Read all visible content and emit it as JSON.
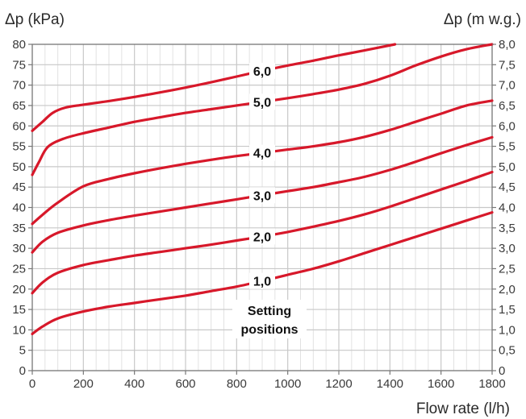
{
  "chart_data": {
    "type": "line",
    "ylabel_left": "Δp (kPa)",
    "ylabel_right": "Δp (m w.g.)",
    "xlabel": "Flow rate (l/h)",
    "xlim": [
      0,
      1800
    ],
    "ylim": [
      0,
      80
    ],
    "x_ticks": [
      "0",
      "200",
      "400",
      "600",
      "800",
      "1000",
      "1200",
      "1400",
      "1600",
      "1800"
    ],
    "y_ticks_left": [
      "0",
      "5",
      "10",
      "15",
      "20",
      "25",
      "30",
      "35",
      "40",
      "45",
      "50",
      "55",
      "60",
      "65",
      "70",
      "75",
      "80"
    ],
    "y_ticks_right": [
      "0",
      "0,5",
      "1,0",
      "1,5",
      "2,0",
      "2,5",
      "3,0",
      "3,5",
      "4,0",
      "4,5",
      "5,0",
      "5,5",
      "6,0",
      "6,5",
      "7,0",
      "7,5",
      "8,0"
    ],
    "annotation": [
      "Setting",
      "positions"
    ],
    "grid": true,
    "colors": {
      "curve": "#d7182a",
      "grid": "#c8c8c8",
      "axis": "#777777"
    },
    "series": [
      {
        "name": "1,0",
        "points": [
          [
            0,
            9
          ],
          [
            40,
            10.8
          ],
          [
            100,
            12.8
          ],
          [
            200,
            14.5
          ],
          [
            300,
            15.7
          ],
          [
            400,
            16.6
          ],
          [
            500,
            17.5
          ],
          [
            600,
            18.4
          ],
          [
            700,
            19.5
          ],
          [
            800,
            20.6
          ],
          [
            900,
            22.0
          ],
          [
            1000,
            23.5
          ],
          [
            1100,
            25.0
          ],
          [
            1200,
            26.8
          ],
          [
            1300,
            28.8
          ],
          [
            1400,
            30.8
          ],
          [
            1500,
            32.8
          ],
          [
            1600,
            34.8
          ],
          [
            1700,
            36.8
          ],
          [
            1800,
            38.8
          ]
        ]
      },
      {
        "name": "2,0",
        "points": [
          [
            0,
            19
          ],
          [
            40,
            21.6
          ],
          [
            100,
            24.0
          ],
          [
            200,
            25.9
          ],
          [
            300,
            27.1
          ],
          [
            400,
            28.2
          ],
          [
            500,
            29.1
          ],
          [
            600,
            30.0
          ],
          [
            700,
            30.9
          ],
          [
            800,
            31.9
          ],
          [
            900,
            32.9
          ],
          [
            1000,
            34.0
          ],
          [
            1100,
            35.3
          ],
          [
            1200,
            36.7
          ],
          [
            1300,
            38.3
          ],
          [
            1400,
            40.2
          ],
          [
            1500,
            42.3
          ],
          [
            1600,
            44.4
          ],
          [
            1700,
            46.5
          ],
          [
            1800,
            48.7
          ]
        ]
      },
      {
        "name": "3,0",
        "points": [
          [
            0,
            29
          ],
          [
            40,
            31.6
          ],
          [
            100,
            33.8
          ],
          [
            200,
            35.6
          ],
          [
            300,
            36.9
          ],
          [
            400,
            38.0
          ],
          [
            500,
            39.0
          ],
          [
            600,
            40.0
          ],
          [
            700,
            41.0
          ],
          [
            800,
            42.0
          ],
          [
            900,
            43.0
          ],
          [
            1000,
            44.0
          ],
          [
            1100,
            45.0
          ],
          [
            1200,
            46.2
          ],
          [
            1300,
            47.5
          ],
          [
            1400,
            49.2
          ],
          [
            1500,
            51.2
          ],
          [
            1600,
            53.3
          ],
          [
            1700,
            55.3
          ],
          [
            1800,
            57.2
          ]
        ]
      },
      {
        "name": "4,0",
        "points": [
          [
            0,
            36
          ],
          [
            40,
            38.2
          ],
          [
            100,
            41.2
          ],
          [
            200,
            45.2
          ],
          [
            300,
            47.0
          ],
          [
            400,
            48.4
          ],
          [
            500,
            49.6
          ],
          [
            600,
            50.7
          ],
          [
            700,
            51.7
          ],
          [
            800,
            52.6
          ],
          [
            900,
            53.4
          ],
          [
            1000,
            54.2
          ],
          [
            1100,
            55.0
          ],
          [
            1200,
            56.0
          ],
          [
            1300,
            57.3
          ],
          [
            1400,
            59.0
          ],
          [
            1500,
            61.0
          ],
          [
            1600,
            63.0
          ],
          [
            1700,
            65.0
          ],
          [
            1800,
            66.2
          ]
        ]
      },
      {
        "name": "5,0",
        "points": [
          [
            0,
            48
          ],
          [
            25,
            51.0
          ],
          [
            60,
            54.8
          ],
          [
            120,
            56.8
          ],
          [
            200,
            58.2
          ],
          [
            300,
            59.6
          ],
          [
            400,
            61.0
          ],
          [
            500,
            62.1
          ],
          [
            600,
            63.2
          ],
          [
            700,
            64.1
          ],
          [
            800,
            65.0
          ],
          [
            900,
            65.9
          ],
          [
            1000,
            66.8
          ],
          [
            1100,
            67.8
          ],
          [
            1200,
            68.9
          ],
          [
            1300,
            70.3
          ],
          [
            1400,
            72.3
          ],
          [
            1500,
            74.8
          ],
          [
            1600,
            77.0
          ],
          [
            1700,
            78.8
          ],
          [
            1800,
            80.0
          ]
        ]
      },
      {
        "name": "6,0",
        "points": [
          [
            0,
            58.8
          ],
          [
            40,
            61.0
          ],
          [
            80,
            63.2
          ],
          [
            130,
            64.5
          ],
          [
            200,
            65.2
          ],
          [
            300,
            66.1
          ],
          [
            400,
            67.1
          ],
          [
            500,
            68.2
          ],
          [
            600,
            69.4
          ],
          [
            700,
            70.7
          ],
          [
            800,
            72.1
          ],
          [
            900,
            73.5
          ],
          [
            1000,
            74.8
          ],
          [
            1100,
            76.0
          ],
          [
            1200,
            77.3
          ],
          [
            1300,
            78.5
          ],
          [
            1420,
            80.0
          ]
        ]
      }
    ]
  }
}
